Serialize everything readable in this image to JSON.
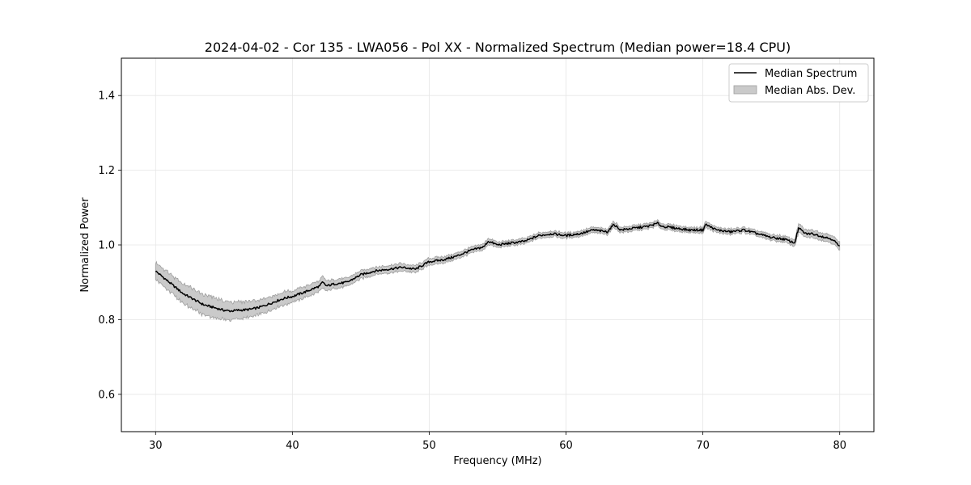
{
  "chart_data": {
    "type": "line",
    "title": "2024-04-02 - Cor 135 - LWA056 - Pol XX - Normalized Spectrum (Median power=18.4 CPU)",
    "xlabel": "Frequency (MHz)",
    "ylabel": "Normalized Power",
    "xlim": [
      27.5,
      82.5
    ],
    "ylim": [
      0.5,
      1.5
    ],
    "xticks": [
      30,
      40,
      50,
      60,
      70,
      80
    ],
    "yticks": [
      0.6,
      0.8,
      1.0,
      1.2,
      1.4
    ],
    "xtick_labels": [
      "30",
      "40",
      "50",
      "60",
      "70",
      "80"
    ],
    "ytick_labels": [
      "0.6",
      "0.8",
      "1.0",
      "1.2",
      "1.4"
    ],
    "grid": true,
    "legend_position": "top-right",
    "legend": [
      "Median Spectrum",
      "Median Abs. Dev."
    ],
    "colors": {
      "line": "#000000",
      "band": "#9e9e9e",
      "grid": "#e6e6e6"
    },
    "series": [
      {
        "name": "Median Spectrum",
        "x": [
          30,
          30.5,
          31,
          31.5,
          32,
          32.5,
          33,
          33.5,
          34,
          34.5,
          35,
          35.5,
          36,
          36.5,
          37,
          37.5,
          38,
          38.5,
          39,
          39.5,
          40,
          41,
          42,
          42.2,
          42.5,
          43,
          44,
          45,
          46,
          47,
          48,
          49,
          49.5,
          50,
          51,
          52,
          53,
          54,
          54.3,
          55,
          56,
          57,
          58,
          59,
          60,
          61,
          62,
          63,
          63.5,
          64,
          65,
          66,
          66.7,
          67,
          68,
          69,
          70,
          70.2,
          71,
          72,
          73,
          74,
          75,
          76,
          76.7,
          77,
          77.5,
          78,
          79,
          79.5,
          80
        ],
        "values": [
          0.93,
          0.915,
          0.9,
          0.885,
          0.87,
          0.86,
          0.85,
          0.84,
          0.835,
          0.83,
          0.825,
          0.823,
          0.825,
          0.826,
          0.828,
          0.832,
          0.838,
          0.845,
          0.852,
          0.858,
          0.862,
          0.875,
          0.89,
          0.9,
          0.89,
          0.895,
          0.9,
          0.92,
          0.93,
          0.935,
          0.94,
          0.935,
          0.945,
          0.955,
          0.96,
          0.97,
          0.985,
          0.995,
          1.01,
          1.0,
          1.005,
          1.01,
          1.025,
          1.03,
          1.025,
          1.03,
          1.04,
          1.035,
          1.055,
          1.04,
          1.045,
          1.05,
          1.058,
          1.05,
          1.045,
          1.04,
          1.04,
          1.055,
          1.04,
          1.035,
          1.04,
          1.03,
          1.02,
          1.015,
          1.005,
          1.045,
          1.03,
          1.03,
          1.02,
          1.015,
          0.995
        ]
      },
      {
        "name": "Median Abs. Dev.",
        "x": [
          30,
          30.5,
          31,
          31.5,
          32,
          32.5,
          33,
          33.5,
          34,
          34.5,
          35,
          35.5,
          36,
          36.5,
          37,
          37.5,
          38,
          38.5,
          39,
          39.5,
          40,
          41,
          42,
          42.2,
          42.5,
          43,
          44,
          45,
          46,
          47,
          48,
          49,
          49.5,
          50,
          51,
          52,
          53,
          54,
          54.3,
          55,
          56,
          57,
          58,
          59,
          60,
          61,
          62,
          63,
          63.5,
          64,
          65,
          66,
          66.7,
          67,
          68,
          69,
          70,
          70.2,
          71,
          72,
          73,
          74,
          75,
          76,
          76.7,
          77,
          77.5,
          78,
          79,
          79.5,
          80
        ],
        "deviation": [
          0.022,
          0.024,
          0.025,
          0.026,
          0.027,
          0.027,
          0.027,
          0.027,
          0.027,
          0.026,
          0.025,
          0.024,
          0.023,
          0.022,
          0.021,
          0.02,
          0.019,
          0.018,
          0.017,
          0.017,
          0.016,
          0.015,
          0.014,
          0.016,
          0.013,
          0.012,
          0.011,
          0.011,
          0.01,
          0.01,
          0.01,
          0.009,
          0.009,
          0.009,
          0.008,
          0.008,
          0.008,
          0.008,
          0.008,
          0.007,
          0.007,
          0.007,
          0.007,
          0.007,
          0.007,
          0.007,
          0.007,
          0.007,
          0.008,
          0.007,
          0.007,
          0.007,
          0.007,
          0.007,
          0.007,
          0.007,
          0.007,
          0.008,
          0.007,
          0.007,
          0.007,
          0.007,
          0.008,
          0.008,
          0.009,
          0.012,
          0.01,
          0.01,
          0.01,
          0.01,
          0.01
        ]
      }
    ]
  }
}
